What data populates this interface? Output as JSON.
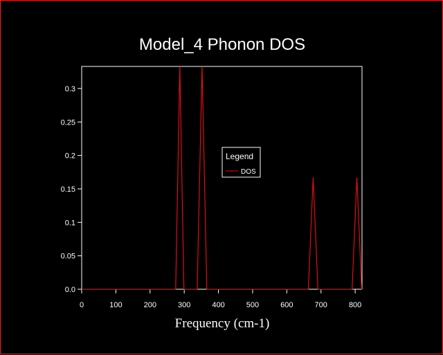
{
  "chart_data": {
    "type": "line",
    "title": "Model_4 Phonon DOS",
    "xlabel": "Frequency (cm-1)",
    "ylabel": "",
    "xlim": [
      0,
      820
    ],
    "ylim": [
      0,
      0.333
    ],
    "xticks": [
      0,
      100,
      200,
      300,
      400,
      500,
      600,
      700,
      800
    ],
    "yticks": [
      0.0,
      0.05,
      0.1,
      0.15,
      0.2,
      0.25,
      0.3
    ],
    "ytick_labels": [
      "0.0",
      "0.05",
      "0.1",
      "0.15",
      "0.2",
      "0.25",
      "0.3"
    ],
    "grid": false,
    "legend": {
      "title": "Legend",
      "position": "center",
      "entries": [
        "DOS"
      ]
    },
    "series": [
      {
        "name": "DOS",
        "color": "#e01010",
        "x": [
          0,
          275,
          287,
          299,
          338,
          352,
          366,
          663,
          677,
          691,
          791,
          805,
          819,
          820
        ],
        "y": [
          0,
          0,
          0.333,
          0,
          0,
          0.333,
          0,
          0,
          0.167,
          0,
          0,
          0.167,
          0,
          0
        ]
      }
    ]
  },
  "colors": {
    "background": "#000000",
    "frame_border": "#ff2020",
    "axes": "#ffffff",
    "text": "#ffffff"
  }
}
